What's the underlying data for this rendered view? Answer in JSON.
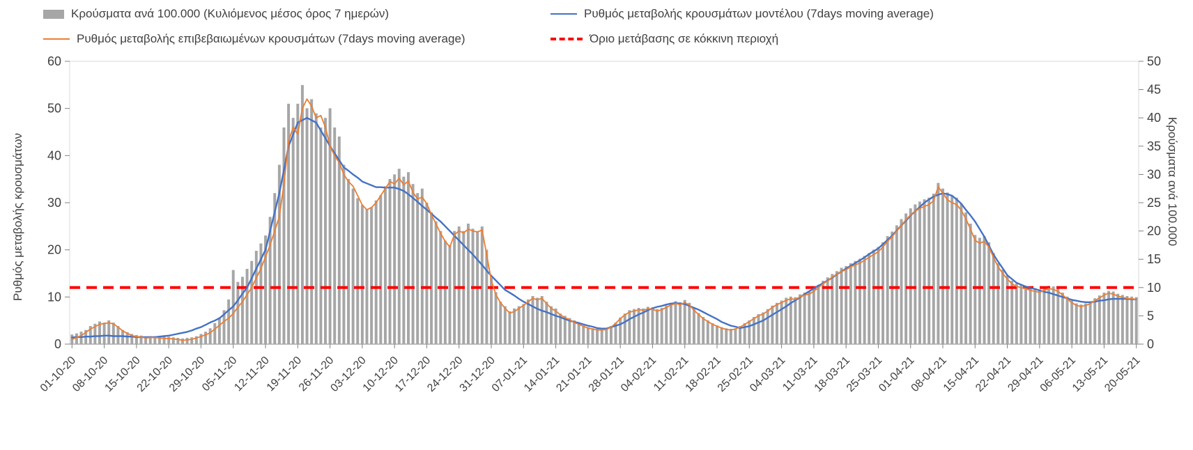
{
  "chart_data": {
    "type": "bar+line combo",
    "title": "",
    "left_axis": {
      "label": "Ρυθμός μεταβολής κρουσμάτων",
      "min": 0,
      "max": 60,
      "ticks": [
        0,
        10,
        20,
        30,
        40,
        50,
        60
      ]
    },
    "right_axis": {
      "label": "Κρούσματα ανά 100.000",
      "min": 0,
      "max": 50,
      "ticks": [
        0,
        5,
        10,
        15,
        20,
        25,
        30,
        35,
        40,
        45,
        50
      ]
    },
    "x_tick_labels": [
      "01-10-20",
      "08-10-20",
      "15-10-20",
      "22-10-20",
      "29-10-20",
      "05-11-20",
      "12-11-20",
      "19-11-20",
      "26-11-20",
      "03-12-20",
      "10-12-20",
      "17-12-20",
      "24-12-20",
      "31-12-20",
      "07-01-21",
      "14-01-21",
      "21-01-21",
      "28-01-21",
      "04-02-21",
      "11-02-21",
      "18-02-21",
      "25-02-21",
      "04-03-21",
      "11-03-21",
      "18-03-21",
      "25-03-21",
      "01-04-21",
      "08-04-21",
      "15-04-21",
      "22-04-21",
      "29-04-21",
      "06-05-21",
      "13-05-21",
      "20-05-21"
    ],
    "points_per_tick": 7,
    "threshold": {
      "label": "Όριο μετάβασης σε κόκκινη περιοχή",
      "left_axis_value": 12,
      "right_axis_value": 10,
      "color": "#ff0000"
    },
    "legend": {
      "items": [
        {
          "label": "Κρούσματα ανά 100.000 (Κυλιόμενος μέσος όρος 7 ημερών)",
          "swatch": "bar",
          "color": "#a6a6a6"
        },
        {
          "label": "Ρυθμός μεταβολής κρουσμάτων μοντέλου (7days moving average)",
          "swatch": "line",
          "color": "#4472c4"
        },
        {
          "label": "Ρυθμός μεταβολής επιβεβαιωμένων κρουσμάτων (7days moving average)",
          "swatch": "line",
          "color": "#ed7d31"
        },
        {
          "label": "Όριο μετάβασης σε κόκκινη περιοχή",
          "swatch": "dashed",
          "color": "#ff0000"
        }
      ]
    },
    "series": [
      {
        "name": "Κρούσματα ανά 100.000 (Κυλιόμενος μέσος όρος 7 ημερών)",
        "type": "bar",
        "axis": "right",
        "color": "#a6a6a6",
        "values": [
          1.7,
          1.9,
          2.2,
          2.5,
          3.2,
          3.6,
          4.0,
          3.8,
          4.2,
          3.8,
          3.2,
          2.5,
          2.1,
          1.8,
          1.6,
          1.5,
          1.3,
          1.4,
          1.4,
          1.3,
          1.3,
          1.3,
          1.2,
          1.1,
          1.0,
          1.1,
          1.2,
          1.4,
          1.8,
          2.2,
          2.8,
          3.7,
          4.7,
          6.0,
          7.9,
          13.1,
          11.0,
          11.9,
          13.3,
          14.7,
          16.5,
          17.8,
          19.2,
          22.5,
          26.7,
          31.7,
          38.3,
          42.5,
          40.0,
          42.5,
          45.8,
          41.7,
          43.3,
          40.8,
          38.3,
          40.0,
          41.7,
          38.3,
          36.7,
          31.7,
          29.2,
          27.5,
          25.8,
          24.6,
          23.8,
          24.2,
          25.4,
          26.3,
          27.9,
          29.2,
          30.0,
          31.0,
          29.6,
          30.4,
          28.3,
          26.7,
          27.5,
          25.0,
          23.3,
          21.7,
          20.0,
          18.3,
          17.5,
          20.0,
          20.8,
          20.0,
          21.3,
          20.4,
          20.0,
          20.8,
          16.7,
          11.7,
          9.2,
          7.5,
          6.7,
          5.8,
          6.3,
          6.7,
          7.1,
          7.9,
          8.5,
          8.2,
          8.5,
          7.5,
          6.7,
          6.3,
          5.4,
          5.0,
          4.6,
          4.2,
          3.8,
          3.3,
          3.0,
          2.8,
          2.7,
          2.7,
          2.8,
          3.2,
          3.8,
          4.7,
          5.4,
          6.0,
          6.2,
          6.4,
          6.3,
          6.6,
          6.5,
          6.2,
          6.4,
          6.8,
          7.3,
          7.6,
          7.4,
          7.8,
          7.3,
          6.3,
          5.5,
          4.8,
          4.2,
          3.7,
          3.3,
          3.0,
          2.8,
          2.7,
          2.8,
          3.2,
          3.7,
          4.2,
          4.8,
          5.3,
          5.6,
          6.2,
          6.8,
          7.3,
          7.7,
          8.2,
          8.4,
          8.3,
          8.8,
          9.1,
          9.3,
          9.8,
          10.5,
          11.2,
          11.8,
          12.4,
          12.9,
          13.5,
          13.8,
          14.3,
          14.7,
          15.1,
          15.6,
          16.1,
          16.7,
          17.2,
          18.0,
          19.1,
          19.9,
          21.0,
          22.1,
          23.1,
          24.0,
          24.7,
          25.2,
          25.6,
          25.9,
          26.6,
          28.5,
          27.5,
          26.8,
          26.3,
          25.9,
          24.8,
          23.3,
          21.3,
          19.3,
          18.8,
          19.1,
          18.0,
          16.1,
          14.3,
          13.2,
          12.1,
          11.2,
          10.7,
          10.5,
          10.3,
          10.0,
          9.8,
          9.7,
          10.0,
          10.3,
          10.2,
          9.8,
          9.1,
          8.4,
          7.7,
          7.2,
          7.0,
          7.2,
          7.5,
          8.1,
          8.6,
          9.1,
          9.4,
          9.3,
          8.9,
          8.7,
          8.5,
          8.4,
          8.3
        ]
      },
      {
        "name": "Ρυθμός μεταβολής κρουσμάτων μοντέλου (7days moving average)",
        "type": "line",
        "axis": "left",
        "color": "#4472c4",
        "values": [
          1.4,
          1.5,
          1.5,
          1.6,
          1.6,
          1.7,
          1.7,
          1.8,
          1.8,
          1.7,
          1.7,
          1.7,
          1.6,
          1.6,
          1.5,
          1.5,
          1.5,
          1.5,
          1.5,
          1.6,
          1.7,
          1.8,
          2.0,
          2.2,
          2.4,
          2.6,
          2.9,
          3.3,
          3.6,
          4.1,
          4.6,
          5.0,
          5.5,
          6.3,
          7.2,
          8.0,
          9.3,
          10.7,
          12.0,
          14.0,
          16.0,
          18.0,
          20.0,
          24.0,
          28.0,
          32.0,
          37.0,
          42.0,
          44.5,
          47.0,
          47.5,
          48.0,
          47.5,
          47.0,
          45.3,
          43.7,
          42.0,
          40.5,
          39.0,
          37.5,
          36.8,
          36.0,
          35.3,
          34.5,
          34.1,
          33.7,
          33.3,
          33.3,
          33.2,
          33.2,
          33.2,
          32.9,
          32.5,
          31.8,
          31.0,
          30.2,
          29.3,
          28.5,
          27.7,
          26.8,
          26.0,
          25.0,
          24.0,
          23.0,
          22.0,
          21.0,
          20.0,
          19.0,
          17.9,
          16.8,
          15.6,
          14.5,
          13.5,
          12.5,
          11.5,
          10.9,
          10.3,
          9.6,
          9.0,
          8.5,
          8.0,
          7.5,
          7.1,
          6.8,
          6.4,
          6.0,
          5.7,
          5.3,
          5.0,
          4.7,
          4.5,
          4.2,
          3.9,
          3.7,
          3.4,
          3.3,
          3.3,
          3.6,
          3.9,
          4.2,
          4.7,
          5.3,
          5.8,
          6.3,
          6.7,
          7.2,
          7.6,
          7.9,
          8.1,
          8.4,
          8.6,
          8.7,
          8.6,
          8.5,
          8.1,
          7.7,
          7.3,
          6.8,
          6.3,
          5.8,
          5.3,
          4.7,
          4.3,
          3.9,
          3.7,
          3.4,
          3.6,
          3.8,
          4.2,
          4.6,
          5.0,
          5.6,
          6.2,
          6.8,
          7.4,
          8.0,
          8.7,
          9.3,
          9.9,
          10.6,
          11.2,
          11.8,
          12.4,
          12.9,
          13.5,
          14.1,
          14.8,
          15.4,
          16.0,
          16.6,
          17.2,
          17.8,
          18.4,
          19.1,
          19.7,
          20.3,
          21.2,
          22.1,
          23.0,
          24.1,
          25.2,
          26.2,
          27.3,
          28.2,
          29.1,
          30.0,
          30.7,
          31.3,
          31.7,
          32.0,
          31.8,
          31.5,
          30.7,
          29.8,
          28.5,
          27.3,
          26.0,
          24.4,
          22.8,
          20.9,
          19.0,
          17.5,
          16.1,
          14.6,
          13.8,
          13.0,
          12.6,
          12.2,
          11.9,
          11.7,
          11.4,
          11.1,
          10.9,
          10.6,
          10.3,
          10.0,
          9.7,
          9.4,
          9.2,
          9.0,
          8.9,
          8.9,
          9.0,
          9.2,
          9.3,
          9.5,
          9.6,
          9.6,
          9.6,
          9.6,
          9.5,
          9.5
        ]
      },
      {
        "name": "Ρυθμός μεταβολής επιβεβαιωμένων κρουσμάτων (7days moving average)",
        "type": "line",
        "axis": "left",
        "color": "#ed7d31",
        "values": [
          1.0,
          1.4,
          1.8,
          2.5,
          3.2,
          3.7,
          4.2,
          4.4,
          4.5,
          4.3,
          3.6,
          2.8,
          2.3,
          1.8,
          1.6,
          1.5,
          1.3,
          1.4,
          1.4,
          1.3,
          1.2,
          1.2,
          1.1,
          1.0,
          0.8,
          0.9,
          1.0,
          1.3,
          1.6,
          2.0,
          2.4,
          3.2,
          4.0,
          4.8,
          5.5,
          6.5,
          7.8,
          9.0,
          10.5,
          12.0,
          14.0,
          16.0,
          18.5,
          21.0,
          24.0,
          27.0,
          34.0,
          43.0,
          46.0,
          44.5,
          50.0,
          52.0,
          50.5,
          48.0,
          48.5,
          46.0,
          42.0,
          40.0,
          38.5,
          36.0,
          34.5,
          33.5,
          31.5,
          29.5,
          28.5,
          29.0,
          30.0,
          31.5,
          33.0,
          34.5,
          34.0,
          35.2,
          33.8,
          34.6,
          32.2,
          30.8,
          31.2,
          29.8,
          27.5,
          25.5,
          23.5,
          21.8,
          20.6,
          23.2,
          24.0,
          23.6,
          24.4,
          24.0,
          23.8,
          24.2,
          19.0,
          13.5,
          10.5,
          8.8,
          7.6,
          6.6,
          6.9,
          7.6,
          8.2,
          9.0,
          9.7,
          9.4,
          9.7,
          8.6,
          7.6,
          7.0,
          6.2,
          5.6,
          5.2,
          4.6,
          4.2,
          3.8,
          3.4,
          3.2,
          3.0,
          3.0,
          3.1,
          3.6,
          4.4,
          5.4,
          6.2,
          6.8,
          7.0,
          7.3,
          7.2,
          7.5,
          7.4,
          7.0,
          7.3,
          7.8,
          8.3,
          8.6,
          8.4,
          8.8,
          8.3,
          7.2,
          6.3,
          5.4,
          4.8,
          4.2,
          3.8,
          3.4,
          3.1,
          3.0,
          3.2,
          3.6,
          4.2,
          4.8,
          5.4,
          6.0,
          6.4,
          7.0,
          7.8,
          8.4,
          8.8,
          9.3,
          9.6,
          9.5,
          10.0,
          10.4,
          10.6,
          11.2,
          12.0,
          12.8,
          13.4,
          14.2,
          14.8,
          15.4,
          15.8,
          16.4,
          16.8,
          17.2,
          17.8,
          18.4,
          19.0,
          19.6,
          20.6,
          21.8,
          22.8,
          24.0,
          25.2,
          26.4,
          27.4,
          28.2,
          28.8,
          29.2,
          29.6,
          30.4,
          33.4,
          32.0,
          30.6,
          30.0,
          29.6,
          28.4,
          26.6,
          24.4,
          22.0,
          21.4,
          21.8,
          20.6,
          18.4,
          16.4,
          15.0,
          13.8,
          12.8,
          12.2,
          12.0,
          11.8,
          11.4,
          11.2,
          11.0,
          11.4,
          11.8,
          11.6,
          11.2,
          10.4,
          9.6,
          8.8,
          8.2,
          8.0,
          8.2,
          8.6,
          9.2,
          9.8,
          10.4,
          10.8,
          10.6,
          10.2,
          9.9,
          9.7,
          9.6,
          9.5
        ]
      }
    ]
  }
}
